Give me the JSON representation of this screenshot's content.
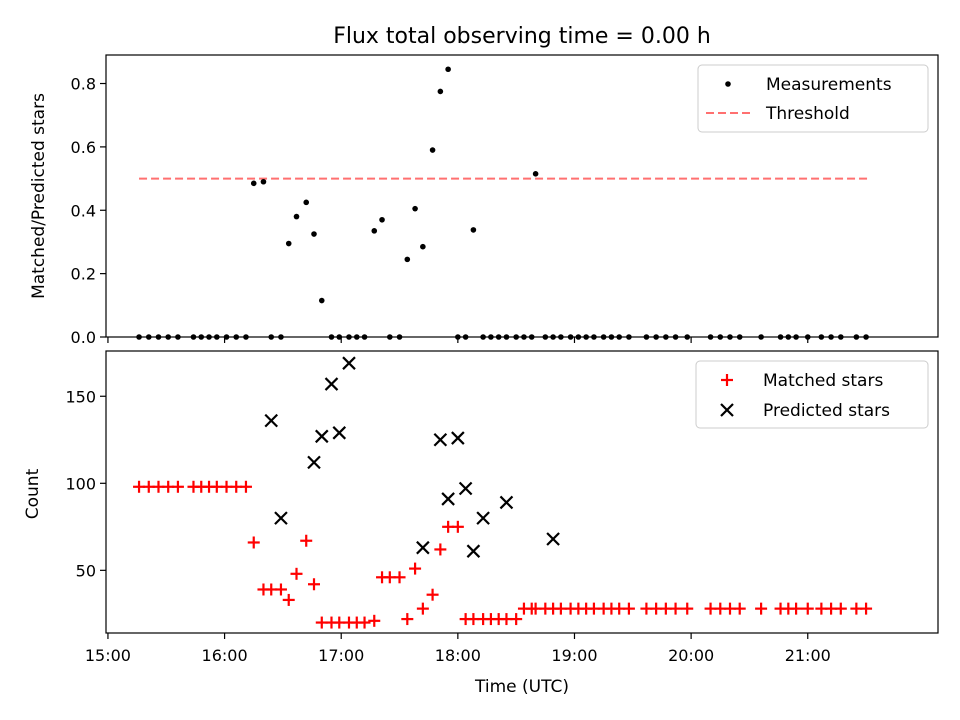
{
  "chart_data": [
    {
      "type": "scatter",
      "title": "Flux total observing time = 0.00 h",
      "ylabel": "Matched/Predicted stars",
      "ylim": [
        0,
        0.89
      ],
      "yticks": [
        0.0,
        0.2,
        0.4,
        0.6,
        0.8
      ],
      "ytick_labels": [
        "0.0",
        "0.2",
        "0.4",
        "0.6",
        "0.8"
      ],
      "legend": {
        "placement": "upper right",
        "entries": [
          "Measurements",
          "Threshold"
        ]
      },
      "colors": {
        "measurements": "#000000",
        "threshold": "#ff7070"
      },
      "threshold": {
        "name": "Threshold",
        "y": 0.5,
        "x_start": "15:16",
        "x_end": "21:32"
      },
      "series": [
        {
          "name": "Measurements",
          "x": [
            "15:16",
            "15:21",
            "15:26",
            "15:31",
            "15:36",
            "15:44",
            "15:48",
            "15:52",
            "15:56",
            "16:01",
            "16:06",
            "16:11",
            "16:15",
            "16:20",
            "16:24",
            "16:29",
            "16:33",
            "16:37",
            "16:42",
            "16:46",
            "16:50",
            "16:55",
            "16:59",
            "17:04",
            "17:08",
            "17:12",
            "17:17",
            "17:21",
            "17:25",
            "17:30",
            "17:34",
            "17:38",
            "17:42",
            "17:47",
            "17:51",
            "17:55",
            "18:00",
            "18:04",
            "18:08",
            "18:13",
            "18:17",
            "18:21",
            "18:25",
            "18:30",
            "18:34",
            "18:38",
            "18:40",
            "18:45",
            "18:49",
            "18:53",
            "18:58",
            "19:02",
            "19:06",
            "19:10",
            "19:15",
            "19:19",
            "19:23",
            "19:28",
            "19:37",
            "19:42",
            "19:47",
            "19:52",
            "19:58",
            "20:10",
            "20:15",
            "20:20",
            "20:25",
            "20:36",
            "20:46",
            "20:50",
            "20:54",
            "21:00",
            "21:07",
            "21:12",
            "21:17",
            "21:25",
            "21:30"
          ],
          "y": [
            0,
            0,
            0,
            0,
            0,
            0,
            0,
            0,
            0,
            0,
            0,
            0,
            0.485,
            0.49,
            0,
            0,
            0.295,
            0.38,
            0.425,
            0.325,
            0.115,
            0,
            0,
            0,
            0,
            0,
            0.335,
            0.37,
            0,
            0,
            0.245,
            0.405,
            0.285,
            0.59,
            0.775,
            0.845,
            0,
            0,
            0.338,
            0,
            0,
            0,
            0,
            0,
            0,
            0,
            0.515,
            0,
            0,
            0,
            0,
            0,
            0,
            0,
            0,
            0,
            0,
            0,
            0,
            0,
            0,
            0,
            0,
            0,
            0,
            0,
            0,
            0,
            0,
            0,
            0,
            0,
            0,
            0,
            0,
            0,
            0
          ]
        }
      ]
    },
    {
      "type": "scatter",
      "xlabel": "Time (UTC)",
      "ylabel": "Count",
      "ylim": [
        14,
        176
      ],
      "yticks": [
        50,
        100,
        150
      ],
      "ytick_labels": [
        "50",
        "100",
        "150"
      ],
      "x_range": [
        "14:59",
        "22:07"
      ],
      "xticks": [
        "15:00",
        "16:00",
        "17:00",
        "18:00",
        "19:00",
        "20:00",
        "21:00"
      ],
      "xtick_labels": [
        "15:00",
        "16:00",
        "17:00",
        "18:00",
        "19:00",
        "20:00",
        "21:00"
      ],
      "legend": {
        "placement": "upper right",
        "entries": [
          "Matched stars",
          "Predicted stars"
        ]
      },
      "colors": {
        "matched": "#ff0000",
        "predicted": "#000000"
      },
      "series": [
        {
          "name": "Matched stars",
          "x": [
            "15:16",
            "15:21",
            "15:26",
            "15:31",
            "15:36",
            "15:44",
            "15:48",
            "15:52",
            "15:56",
            "16:01",
            "16:06",
            "16:11",
            "16:15",
            "16:20",
            "16:24",
            "16:29",
            "16:33",
            "16:37",
            "16:42",
            "16:46",
            "16:50",
            "16:55",
            "16:59",
            "17:04",
            "17:08",
            "17:12",
            "17:17",
            "17:21",
            "17:25",
            "17:30",
            "17:34",
            "17:38",
            "17:42",
            "17:47",
            "17:51",
            "17:55",
            "18:00",
            "18:04",
            "18:08",
            "18:13",
            "18:17",
            "18:21",
            "18:25",
            "18:30",
            "18:34",
            "18:38",
            "18:40",
            "18:45",
            "18:49",
            "18:53",
            "18:58",
            "19:02",
            "19:06",
            "19:10",
            "19:15",
            "19:19",
            "19:23",
            "19:28",
            "19:37",
            "19:42",
            "19:47",
            "19:52",
            "19:58",
            "20:10",
            "20:15",
            "20:20",
            "20:25",
            "20:36",
            "20:46",
            "20:50",
            "20:54",
            "21:00",
            "21:07",
            "21:12",
            "21:17",
            "21:25",
            "21:30"
          ],
          "y": [
            98,
            98,
            98,
            98,
            98,
            98,
            98,
            98,
            98,
            98,
            98,
            98,
            66,
            39,
            39,
            39,
            33,
            48,
            67,
            42,
            20,
            20,
            20,
            20,
            20,
            20,
            21,
            46,
            46,
            46,
            22,
            51,
            28,
            36,
            62,
            75,
            75,
            22,
            22,
            22,
            22,
            22,
            22,
            22,
            28,
            28,
            28,
            28,
            28,
            28,
            28,
            28,
            28,
            28,
            28,
            28,
            28,
            28,
            28,
            28,
            28,
            28,
            28,
            28,
            28,
            28,
            28,
            28,
            28,
            28,
            28,
            28,
            28,
            28,
            28,
            28,
            28
          ]
        },
        {
          "name": "Predicted stars",
          "x": [
            "16:24",
            "16:29",
            "16:46",
            "16:50",
            "16:55",
            "16:59",
            "17:04",
            "17:42",
            "17:51",
            "17:55",
            "18:00",
            "18:04",
            "18:08",
            "18:13",
            "18:25",
            "18:49"
          ],
          "y": [
            136,
            80,
            112,
            127,
            157,
            129,
            169,
            63,
            125,
            91,
            126,
            97,
            61,
            80,
            89,
            68
          ]
        }
      ]
    }
  ]
}
